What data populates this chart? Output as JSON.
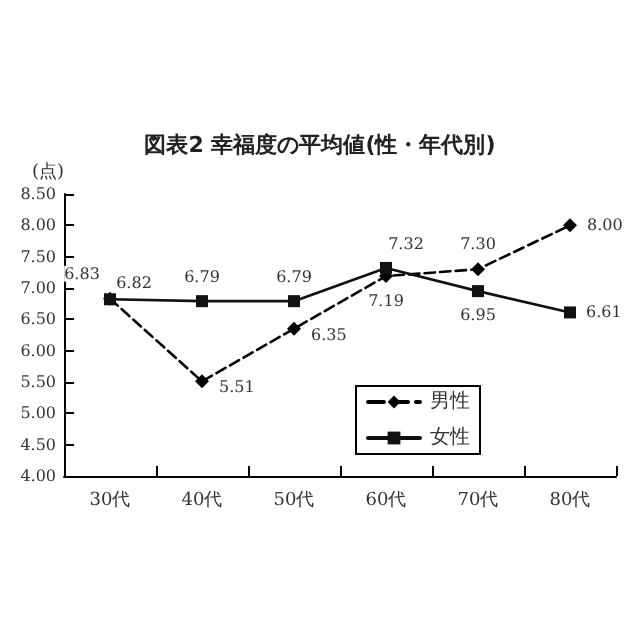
{
  "chart_data": {
    "type": "line",
    "title": "図表2 幸福度の平均値(性・年代別)",
    "ylabel": "(点)",
    "categories": [
      "30代",
      "40代",
      "50代",
      "60代",
      "70代",
      "80代"
    ],
    "series": [
      {
        "name": "男性",
        "color": "#000000",
        "line_style": "dashed",
        "marker": "diamond",
        "values": [
          6.83,
          5.51,
          6.35,
          7.19,
          7.3,
          8.0
        ],
        "value_labels": [
          "6.83",
          "5.51",
          "6.35",
          "7.19",
          "7.30",
          "8.00"
        ]
      },
      {
        "name": "女性",
        "color": "#111111",
        "line_style": "solid",
        "marker": "square",
        "values": [
          6.82,
          6.79,
          6.79,
          7.32,
          6.95,
          6.61
        ],
        "value_labels": [
          "6.82",
          "6.79",
          "6.79",
          "7.32",
          "6.95",
          "6.61"
        ]
      }
    ],
    "ylim": [
      4,
      8.5
    ],
    "yticks": [
      {
        "value": 4,
        "label": "4.00"
      },
      {
        "value": 4.5,
        "label": "4.50"
      },
      {
        "value": 5,
        "label": "5.00"
      },
      {
        "value": 5.5,
        "label": "5.50"
      },
      {
        "value": 6,
        "label": "6.00"
      },
      {
        "value": 6.5,
        "label": "6.50"
      },
      {
        "value": 7,
        "label": "7.00"
      },
      {
        "value": 7.5,
        "label": "7.50"
      },
      {
        "value": 8,
        "label": "8.00"
      },
      {
        "value": 8.5,
        "label": "8.50"
      }
    ],
    "grid": false,
    "legend": "bottom right"
  }
}
